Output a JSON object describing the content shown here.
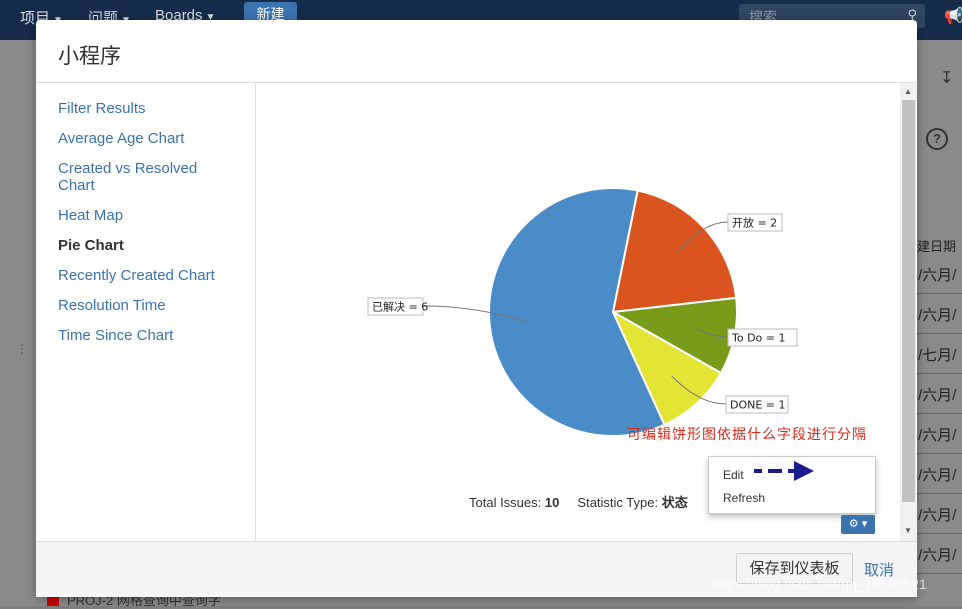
{
  "topnav": {
    "projects": "项目",
    "issues": "问题",
    "boards": "Boards",
    "create": "新建",
    "search_placeholder": "搜索"
  },
  "background": {
    "column_header": "建日期",
    "cells": [
      "/六月/",
      "/六月/",
      "/七月/",
      "/六月/",
      "/六月/",
      "/六月/",
      "/六月/",
      "/六月/"
    ],
    "bottom_row": "PROJ-2   网格查询中查询字"
  },
  "modal": {
    "title": "小程序",
    "sidebar": [
      {
        "label": "Filter Results",
        "active": false
      },
      {
        "label": "Average Age Chart",
        "active": false
      },
      {
        "label": "Created vs Resolved Chart",
        "active": false
      },
      {
        "label": "Heat Map",
        "active": false
      },
      {
        "label": "Pie Chart",
        "active": true
      },
      {
        "label": "Recently Created Chart",
        "active": false
      },
      {
        "label": "Resolution Time",
        "active": false
      },
      {
        "label": "Time Since Chart",
        "active": false
      }
    ],
    "annotation": "可编辑饼形图依据什么字段进行分隔",
    "stats": {
      "total_label": "Total Issues:",
      "total_value": "10",
      "type_label": "Statistic Type:",
      "type_value": "状态"
    },
    "menu": {
      "edit": "Edit",
      "refresh": "Refresh"
    },
    "footer": {
      "save": "保存到仪表板",
      "cancel": "取消"
    }
  },
  "watermark": "https://blog.csdn.net/qq_18593521",
  "chart_data": {
    "type": "pie",
    "categories": [
      "已解决",
      "开放",
      "To Do",
      "DONE"
    ],
    "values": [
      6,
      2,
      1,
      1
    ],
    "labels": [
      "已解决 = 6",
      "开放 = 2",
      "To Do = 1",
      "DONE = 1"
    ],
    "colors": [
      "#4a8cc7",
      "#d9541e",
      "#789b1a",
      "#e2e534"
    ]
  }
}
